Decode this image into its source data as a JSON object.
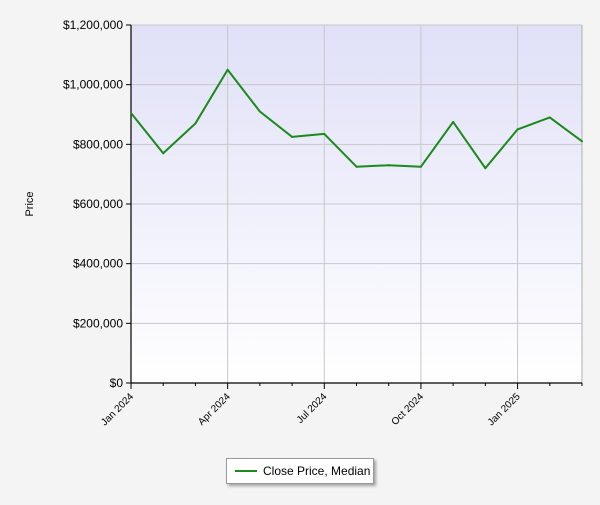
{
  "chart_data": {
    "type": "line",
    "title": "",
    "xlabel": "",
    "ylabel": "Price",
    "ylim": [
      0,
      1200000
    ],
    "yticks": [
      "$0",
      "$200,000",
      "$400,000",
      "$600,000",
      "$800,000",
      "$1,000,000",
      "$1,200,000"
    ],
    "xticks": [
      "Jan 2024",
      "Apr 2024",
      "Jul 2024",
      "Oct 2024",
      "Jan 2025"
    ],
    "grid": true,
    "legend_position": "bottom",
    "series": [
      {
        "name": "Close Price, Median",
        "color": "#1a8a1a",
        "x": [
          "2024-01",
          "2024-02",
          "2024-03",
          "2024-04",
          "2024-05",
          "2024-06",
          "2024-07",
          "2024-08",
          "2024-09",
          "2024-10",
          "2024-11",
          "2024-12",
          "2025-01",
          "2025-02",
          "2025-03"
        ],
        "values": [
          905000,
          770000,
          870000,
          1050000,
          910000,
          825000,
          835000,
          725000,
          730000,
          725000,
          875000,
          720000,
          850000,
          890000,
          810000
        ]
      }
    ]
  },
  "colors": {
    "plot_top": "#e0e0f8",
    "plot_bottom": "#ffffff",
    "grid": "#c8c8c8",
    "line": "#1a8a1a"
  }
}
